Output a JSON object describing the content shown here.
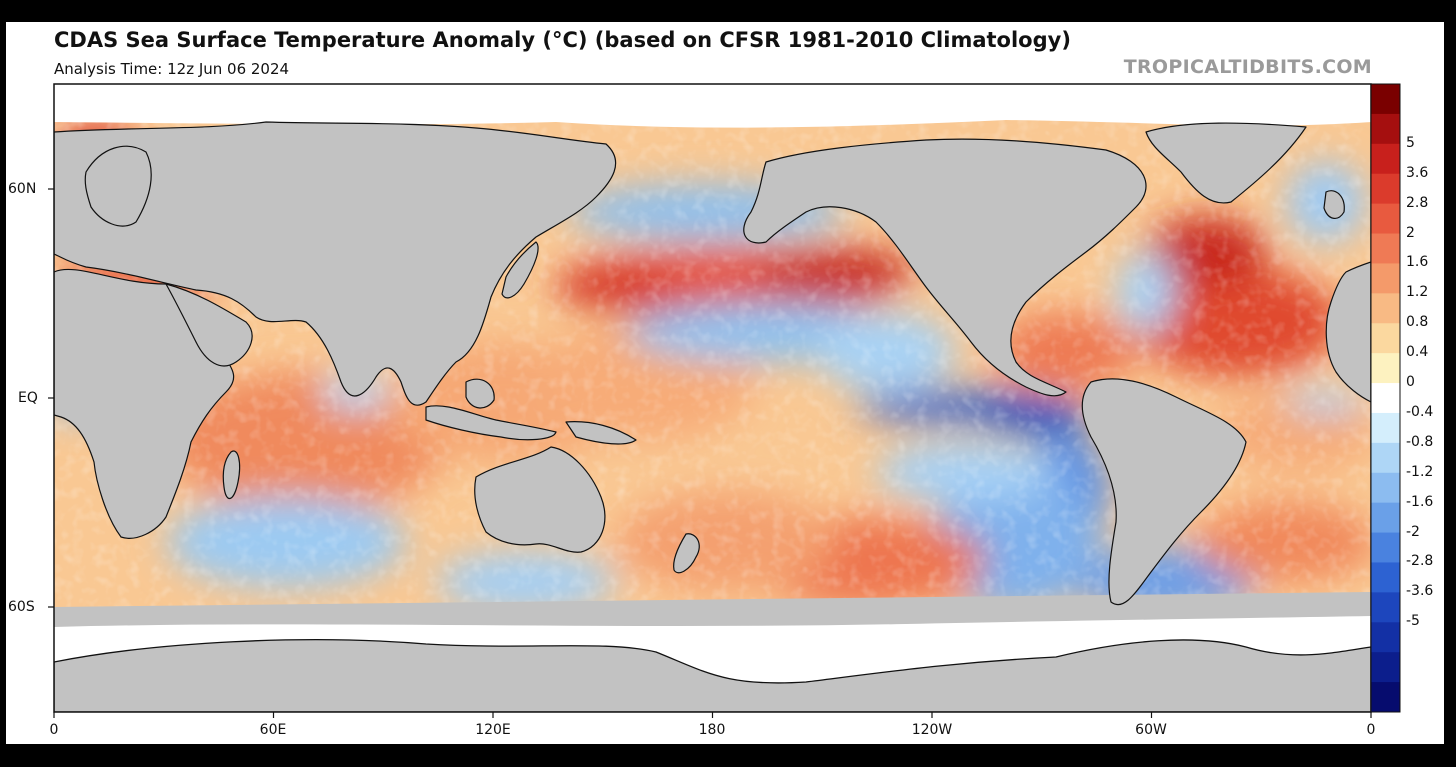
{
  "header": {
    "title": "CDAS Sea Surface Temperature Anomaly (°C) (based on CFSR 1981-2010 Climatology)",
    "subtitle": "Analysis Time: 12z Jun 06 2024",
    "credit": "TROPICALTIDBITS.COM"
  },
  "map": {
    "projection": "equirectangular",
    "center_longitude": "180",
    "lat_labels": [
      "60N",
      "EQ",
      "60S"
    ],
    "lon_labels": [
      "0",
      "60E",
      "120E",
      "180",
      "120W",
      "60W",
      "0"
    ],
    "colors": {
      "land": "#c2c2c2",
      "ice": "#ffffff",
      "coast": "#111111"
    }
  },
  "colorbar": {
    "labels": [
      "5",
      "3.6",
      "2.8",
      "2",
      "1.6",
      "1.2",
      "0.8",
      "0.4",
      "0",
      "-0.4",
      "-0.8",
      "-1.2",
      "-1.6",
      "-2",
      "-2.8",
      "-3.6",
      "-5"
    ],
    "colors": [
      "#7a0000",
      "#a50f0f",
      "#c8201c",
      "#db3b2c",
      "#e85a3f",
      "#ef7a55",
      "#f49a6a",
      "#f8ba84",
      "#fbd89f",
      "#fdf2c0",
      "#ffffff",
      "#d4eefc",
      "#aed6f6",
      "#8cbcf0",
      "#6aa0e8",
      "#4a82df",
      "#2d62d2",
      "#1d46bd",
      "#1330a5",
      "#0c1e8c",
      "#060c6e"
    ]
  }
}
